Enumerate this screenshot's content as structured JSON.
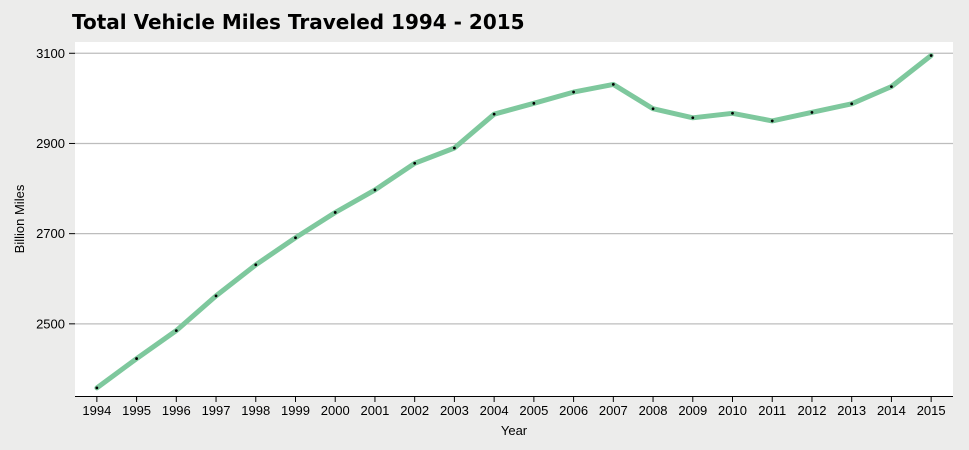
{
  "chart_data": {
    "type": "line",
    "title": "Total Vehicle Miles Traveled 1994 - 2015",
    "xlabel": "Year",
    "ylabel": "Billion Miles",
    "x": [
      1994,
      1995,
      1996,
      1997,
      1998,
      1999,
      2000,
      2001,
      2002,
      2003,
      2004,
      2005,
      2006,
      2007,
      2008,
      2009,
      2010,
      2011,
      2012,
      2013,
      2014,
      2015
    ],
    "series": [
      {
        "values": [
          2358,
          2423,
          2485,
          2562,
          2631,
          2691,
          2747,
          2797,
          2856,
          2890,
          2965,
          2989,
          3014,
          3031,
          2977,
          2957,
          2967,
          2950,
          2969,
          2988,
          3026,
          3095
        ],
        "color": "#7ec89d"
      }
    ],
    "yticks": [
      2500,
      2700,
      2900,
      3100
    ],
    "ylim": [
      2340,
      3125
    ],
    "xlim": [
      1993.45,
      2015.55
    ],
    "grid": true,
    "legend": "none",
    "colors": {
      "background": "#ececeb",
      "plot_background": "#ffffff",
      "grid": "#bdbdbd",
      "line": "#7ec89d",
      "point": "#000000"
    }
  }
}
